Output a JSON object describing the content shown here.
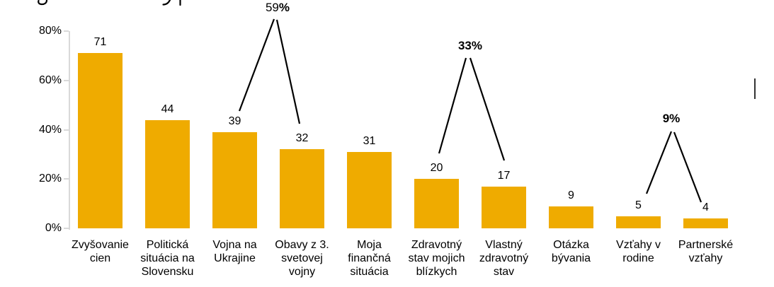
{
  "chart_data": {
    "type": "bar",
    "title": "",
    "bar_color": "#EFAB00",
    "axis_color": "#D9D9D9",
    "text_color": "#000000",
    "ylabel": "",
    "xlabel": "",
    "categories": [
      {
        "label": "Zvyšovanie cien",
        "lines": [
          "Zvyšovanie",
          "cien"
        ]
      },
      {
        "label": "Politická situácia na Slovensku",
        "lines": [
          "Politická",
          "situácia na",
          "Slovensku"
        ]
      },
      {
        "label": "Vojna na Ukrajine",
        "lines": [
          "Vojna na",
          "Ukrajine"
        ]
      },
      {
        "label": "Obavy z 3. svetovej vojny",
        "lines": [
          "Obavy z 3.",
          "svetovej",
          "vojny"
        ]
      },
      {
        "label": "Moja finančná situácia",
        "lines": [
          "Moja",
          "finančná",
          "situácia"
        ]
      },
      {
        "label": "Zdravotný stav mojich blízkych",
        "lines": [
          "Zdravotný",
          "stav mojich",
          "blízkych"
        ]
      },
      {
        "label": "Vlastný zdravotný stav",
        "lines": [
          "Vlastný",
          "zdravotný",
          "stav"
        ]
      },
      {
        "label": "Otázka bývania",
        "lines": [
          "Otázka",
          "bývania"
        ]
      },
      {
        "label": "Vzťahy v rodine",
        "lines": [
          "Vzťahy v",
          "rodine"
        ]
      },
      {
        "label": "Partnerské vzťahy",
        "lines": [
          "Partnerské",
          "vzťahy"
        ]
      }
    ],
    "values": [
      71,
      44,
      39,
      32,
      31,
      20,
      17,
      9,
      5,
      4
    ],
    "y_axis": {
      "min": 0,
      "max": 80,
      "grid": false,
      "ticks": [
        {
          "label": "0%",
          "value": 0
        },
        {
          "label": "20%",
          "value": 20
        },
        {
          "label": "40%",
          "value": 40
        },
        {
          "label": "60%",
          "value": 60
        },
        {
          "label": "80%",
          "value": 80
        }
      ]
    },
    "annotations": [
      {
        "label": "59%",
        "number": "59",
        "suffix": "%",
        "number_bold": false,
        "suffix_bold": true,
        "connects": [
          "Vojna na Ukrajine",
          "Obavy z 3. svetovej vojny"
        ]
      },
      {
        "label": "33%",
        "number": "33",
        "suffix": "%",
        "number_bold": true,
        "suffix_bold": true,
        "connects": [
          "Zdravotný stav mojich blízkych",
          "Vlastný zdravotný stav"
        ]
      },
      {
        "label": "9%",
        "number": "9",
        "suffix": "%",
        "number_bold": true,
        "suffix_bold": true,
        "connects": [
          "Vzťahy v rodine",
          "Partnerské vzťahy"
        ]
      }
    ]
  }
}
